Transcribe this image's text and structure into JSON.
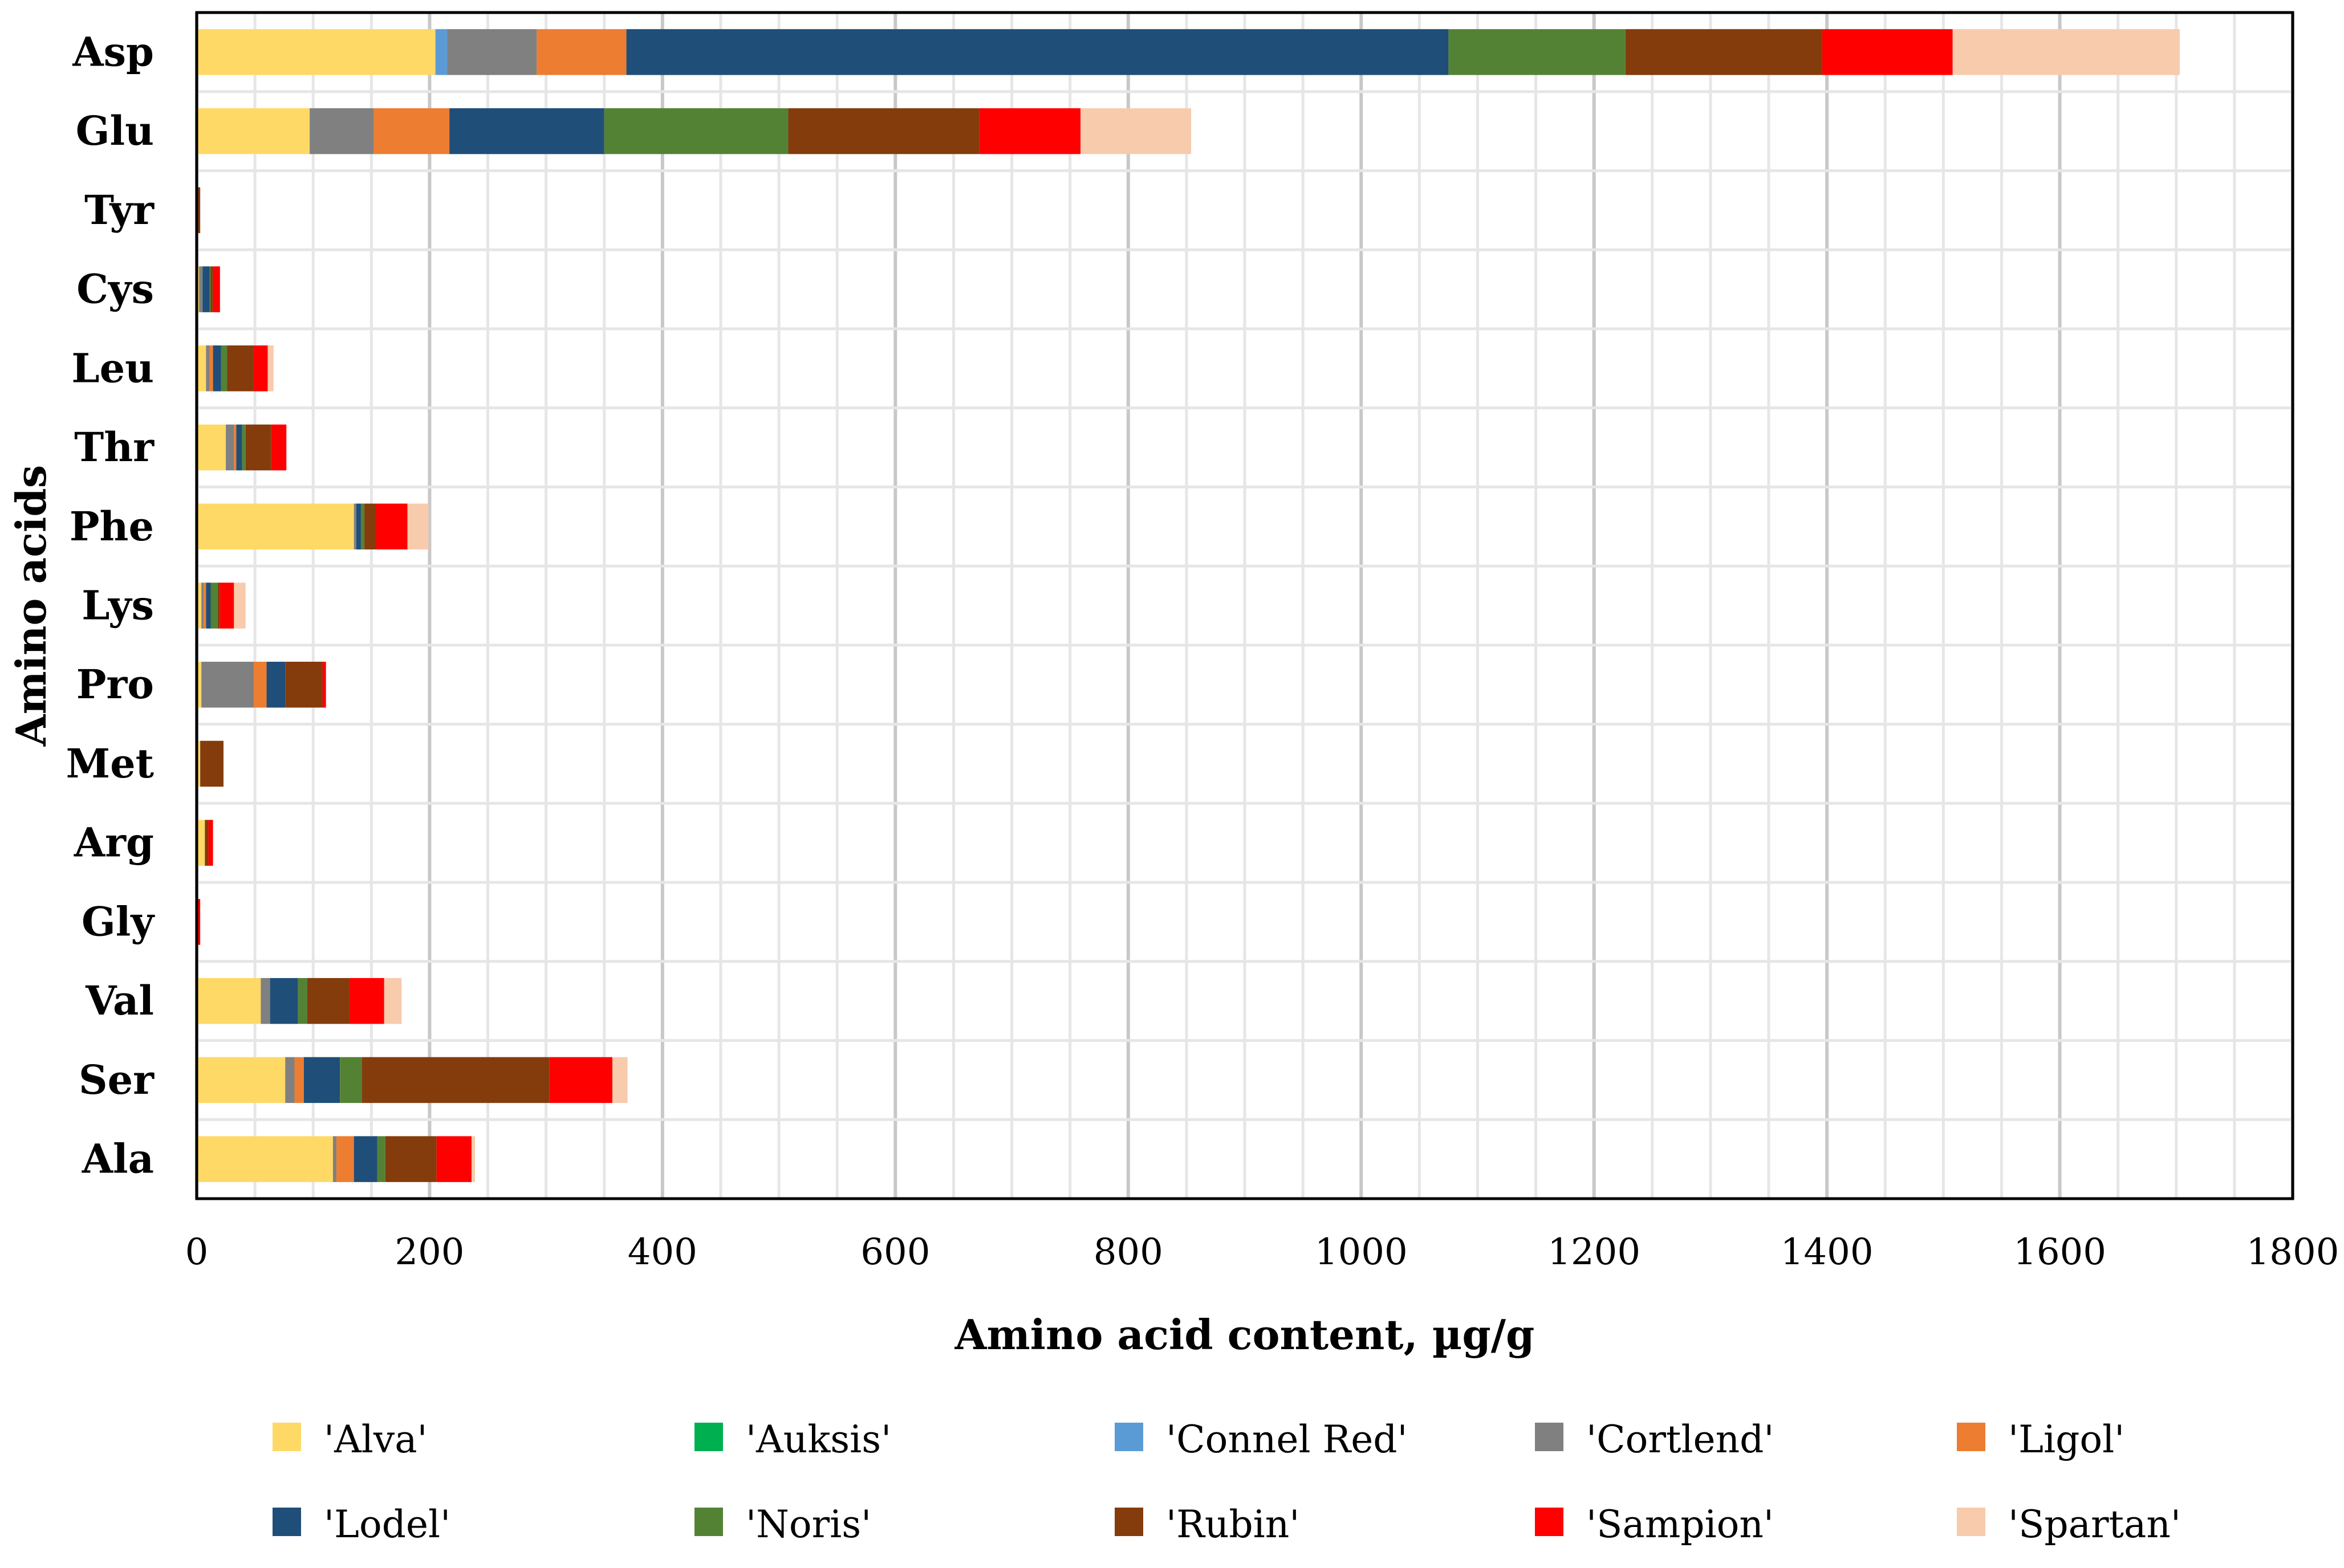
{
  "chart_data": {
    "type": "bar",
    "orientation": "horizontal",
    "stacked": true,
    "title": "",
    "xlabel": "Amino acid content, µg/g",
    "ylabel": "Amino acids",
    "xlim": [
      0,
      1800
    ],
    "xticks": [
      0,
      200,
      400,
      600,
      800,
      1000,
      1200,
      1400,
      1600,
      1800
    ],
    "grid": true,
    "legend_position": "bottom",
    "categories": [
      "Asp",
      "Glu",
      "Tyr",
      "Cys",
      "Leu",
      "Thr",
      "Phe",
      "Lys",
      "Pro",
      "Met",
      "Arg",
      "Gly",
      "Val",
      "Ser",
      "Ala"
    ],
    "series": [
      {
        "name": "'Alva'",
        "color": "#FFD966",
        "values": [
          205,
          97,
          0,
          2,
          8,
          25,
          135,
          4,
          4,
          3,
          7,
          0,
          55,
          76,
          117
        ]
      },
      {
        "name": "'Auksis'",
        "color": "#00B050",
        "values": [
          0,
          0,
          0,
          0,
          0,
          0,
          0,
          0,
          0,
          0,
          0,
          0,
          0,
          0,
          0
        ]
      },
      {
        "name": "'Connel Red'",
        "color": "#5B9BD5",
        "values": [
          10,
          0,
          0,
          0,
          0,
          0,
          0,
          0,
          0,
          0,
          0,
          0,
          0,
          0,
          0
        ]
      },
      {
        "name": "'Cortlend'",
        "color": "#808080",
        "values": [
          77,
          55,
          0,
          3,
          3,
          7,
          2,
          2,
          45,
          0,
          0,
          0,
          8,
          8,
          3
        ]
      },
      {
        "name": "'Ligol'",
        "color": "#ED7D31",
        "values": [
          77,
          65,
          0,
          0,
          3,
          2,
          0,
          2,
          11,
          0,
          0,
          0,
          0,
          8,
          15
        ]
      },
      {
        "name": "'Lodel'",
        "color": "#1F4E79",
        "values": [
          706,
          133,
          0,
          6,
          7,
          5,
          4,
          4,
          16,
          0,
          0,
          0,
          24,
          31,
          20
        ]
      },
      {
        "name": "'Noris'",
        "color": "#548235",
        "values": [
          152,
          158,
          0,
          1,
          5,
          3,
          3,
          6,
          0,
          0,
          0,
          0,
          8,
          19,
          7
        ]
      },
      {
        "name": "'Rubin'",
        "color": "#843C0C",
        "values": [
          169,
          164,
          3,
          2,
          23,
          22,
          10,
          2,
          32,
          20,
          3,
          1,
          36,
          161,
          44
        ]
      },
      {
        "name": "'Sampion'",
        "color": "#FF0000",
        "values": [
          112,
          87,
          0,
          6,
          12,
          13,
          27,
          12,
          3,
          0,
          4,
          2,
          30,
          54,
          30
        ]
      },
      {
        "name": "'Spartan'",
        "color": "#F8CBAD",
        "values": [
          195,
          95,
          0,
          0,
          5,
          0,
          18,
          10,
          0,
          0,
          0,
          0,
          15,
          13,
          3
        ]
      }
    ]
  }
}
